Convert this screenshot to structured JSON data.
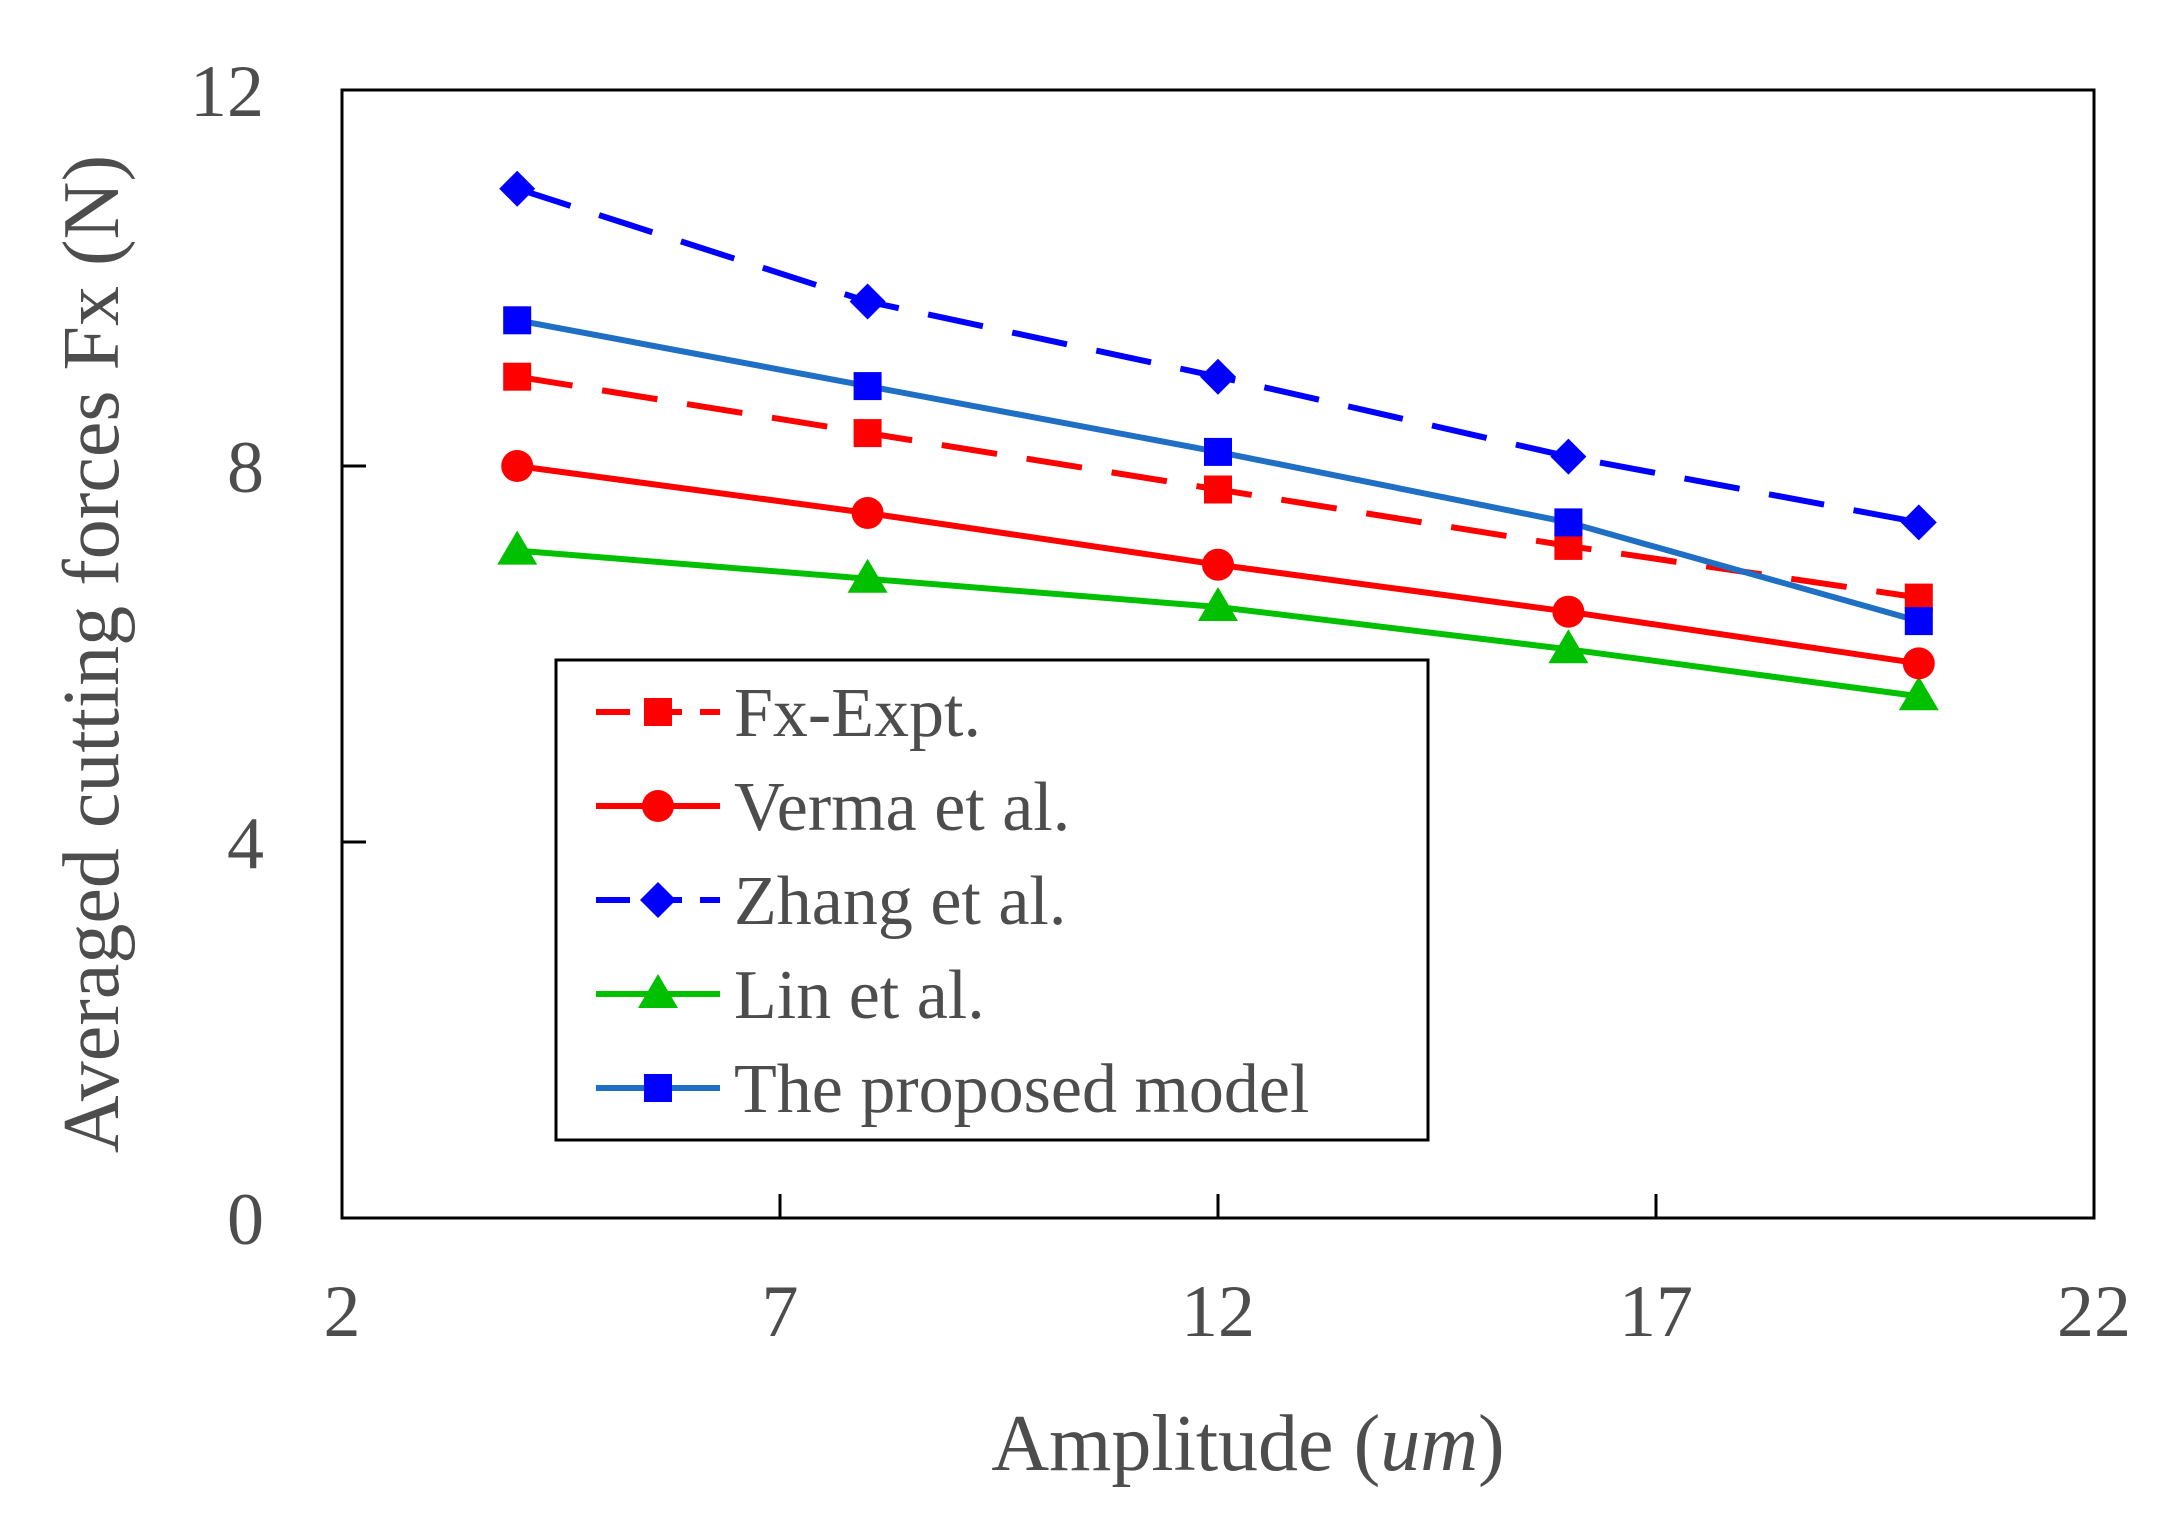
{
  "chart_data": {
    "type": "line",
    "title": "",
    "xlabel": "Amplitude (",
    "xlabel_unit": "um",
    "xlabel_close": ")",
    "ylabel": "Averaged cutting forces Fx (N)",
    "xlim": [
      2,
      22
    ],
    "ylim": [
      0,
      12
    ],
    "xticks": [
      2,
      7,
      12,
      17,
      22
    ],
    "yticks": [
      0,
      4,
      8,
      12
    ],
    "legend_position": "lower-left",
    "x": [
      4,
      8,
      12,
      16,
      20
    ],
    "series": [
      {
        "name": "Fx-Expt.",
        "values": [
          8.95,
          8.35,
          7.75,
          7.15,
          6.6
        ],
        "color": "#ff0000",
        "line_color": "#ff0000",
        "marker": "square",
        "dash": true
      },
      {
        "name": "Verma et al.",
        "values": [
          8.0,
          7.5,
          6.95,
          6.45,
          5.9
        ],
        "color": "#ff0000",
        "line_color": "#ff0000",
        "marker": "circle",
        "dash": false
      },
      {
        "name": "Zhang et al.",
        "values": [
          10.95,
          9.75,
          8.95,
          8.1,
          7.4
        ],
        "color": "#0000ff",
        "line_color": "#0000ff",
        "marker": "diamond",
        "dash": true
      },
      {
        "name": "Lin et al.",
        "values": [
          7.1,
          6.8,
          6.5,
          6.05,
          5.55
        ],
        "color": "#00c000",
        "line_color": "#00c000",
        "marker": "triangle",
        "dash": false
      },
      {
        "name": "The proposed model",
        "values": [
          9.55,
          8.85,
          8.15,
          7.4,
          6.35
        ],
        "color": "#0000ff",
        "line_color": "#1f6fc4",
        "marker": "square",
        "dash": false
      }
    ]
  }
}
